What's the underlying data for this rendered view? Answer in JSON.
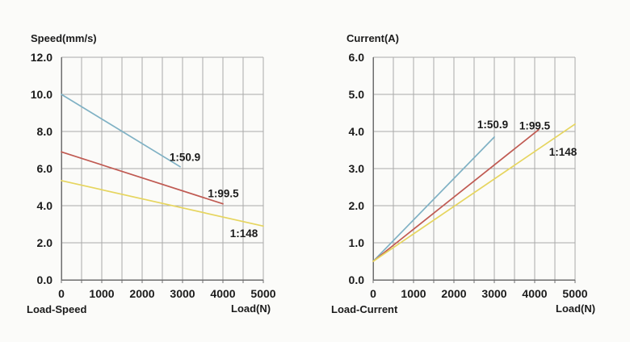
{
  "page": {
    "background": "#fbfbf9",
    "text_color": "#1b1b1b",
    "grid_color": "#a9a9a9",
    "axis_color": "#6e6e6e"
  },
  "chart_data": [
    {
      "type": "line",
      "title": "Speed(mm/s)",
      "xlabel": "Load(N)",
      "footer_label": "Load-Speed",
      "xlim": [
        0,
        5000
      ],
      "ylim": [
        0,
        12
      ],
      "x_grid_step": 500,
      "grid": true,
      "legend_position": "inline-labels",
      "x_ticks": [
        0,
        1000,
        2000,
        3000,
        4000,
        5000
      ],
      "x_tick_labels": [
        "0",
        "1000",
        "2000",
        "3000",
        "4000",
        "5000"
      ],
      "y_ticks": [
        0,
        2,
        4,
        6,
        8,
        10,
        12
      ],
      "y_tick_labels": [
        "0.0",
        "2.0",
        "4.0",
        "6.0",
        "8.0",
        "10.0",
        "12.0"
      ],
      "series": [
        {
          "name": "1:50.9",
          "color": "#7fb1c4",
          "x": [
            0,
            2940
          ],
          "y": [
            10.0,
            6.1
          ],
          "label": "1:50.9",
          "label_at": [
            3060,
            6.6
          ]
        },
        {
          "name": "1:99.5",
          "color": "#c05a52",
          "x": [
            0,
            4000
          ],
          "y": [
            6.9,
            4.1
          ],
          "label": "1:99.5",
          "label_at": [
            4010,
            4.65
          ]
        },
        {
          "name": "1:148",
          "color": "#e6d55f",
          "x": [
            0,
            5000
          ],
          "y": [
            5.35,
            2.9
          ],
          "label": "1:148",
          "label_at": [
            4520,
            2.5
          ]
        }
      ]
    },
    {
      "type": "line",
      "title": "Current(A)",
      "xlabel": "Load(N)",
      "footer_label": "Load-Current",
      "xlim": [
        0,
        5000
      ],
      "ylim": [
        0,
        6
      ],
      "x_grid_step": 500,
      "grid": true,
      "legend_position": "inline-labels",
      "x_ticks": [
        0,
        1000,
        2000,
        3000,
        4000,
        5000
      ],
      "x_tick_labels": [
        "0",
        "1000",
        "2000",
        "3000",
        "4000",
        "5000"
      ],
      "y_ticks": [
        0,
        1,
        2,
        3,
        4,
        5,
        6
      ],
      "y_tick_labels": [
        "0.0",
        "1.0",
        "2.0",
        "3.0",
        "4.0",
        "5.0",
        "6.0"
      ],
      "series": [
        {
          "name": "1:50.9",
          "color": "#7fb1c4",
          "x": [
            0,
            3000
          ],
          "y": [
            0.5,
            3.85
          ],
          "label": "1:50.9",
          "label_at": [
            2960,
            4.18
          ]
        },
        {
          "name": "1:99.5",
          "color": "#c05a52",
          "x": [
            0,
            4100
          ],
          "y": [
            0.5,
            4.05
          ],
          "label": "1:99.5",
          "label_at": [
            4000,
            4.15
          ]
        },
        {
          "name": "1:148",
          "color": "#e6d55f",
          "x": [
            0,
            5000
          ],
          "y": [
            0.5,
            4.2
          ],
          "label": "1:148",
          "label_at": [
            4700,
            3.45
          ]
        }
      ]
    }
  ]
}
